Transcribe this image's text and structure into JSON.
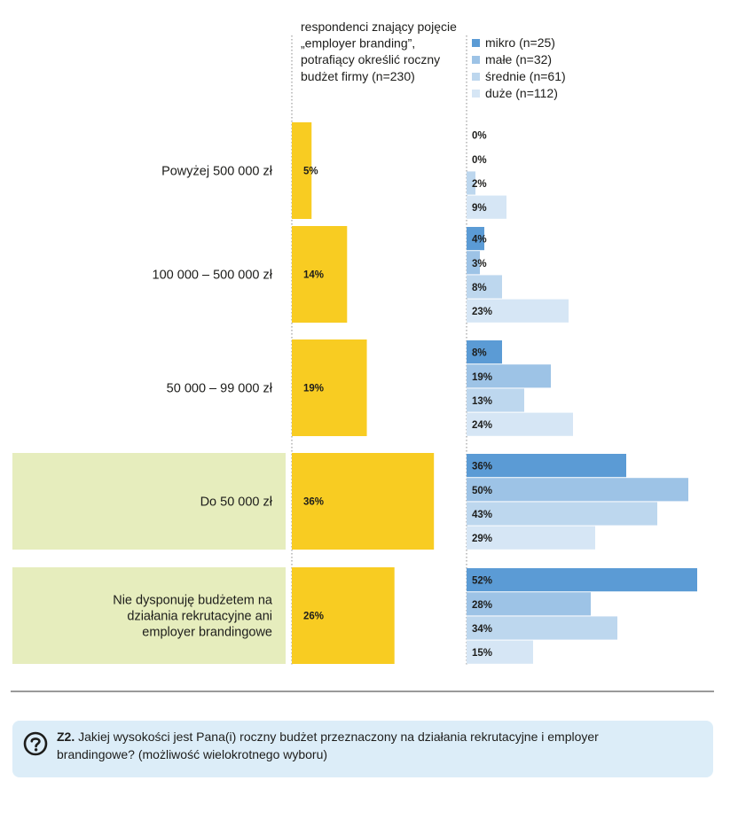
{
  "chart_data": [
    {
      "type": "bar",
      "orientation": "horizontal",
      "title": "respondenci znający pojęcie „employer branding”, potrafiący określić roczny budżet firmy (n=230)",
      "categories": [
        "Powyżej 500 000 zł",
        "100 000 – 500 000 zł",
        "50 000 – 99 000 zł",
        "Do 50 000 zł",
        "Nie dysponuję budżetem na działania rekrutacyjne ani employer brandingowe"
      ],
      "values": [
        5,
        14,
        19,
        36,
        26
      ],
      "labels": [
        "5%",
        "14%",
        "19%",
        "36%",
        "26%"
      ],
      "color": "#f8cc22",
      "highlighted_categories": [
        "Do 50 000 zł",
        "Nie dysponuję budżetem na działania rekrutacyjne ani employer brandingowe"
      ],
      "highlight_color": "#e6edbd"
    },
    {
      "type": "bar",
      "orientation": "horizontal",
      "categories": [
        "Powyżej 500 000 zł",
        "100 000 – 500 000 zł",
        "50 000 – 99 000 zł",
        "Do 50 000 zł",
        "Nie dysponuję budżetem na działania rekrutacyjne ani employer brandingowe"
      ],
      "series": [
        {
          "name": "mikro (n=25)",
          "color": "#5b9bd5",
          "values": [
            0,
            4,
            8,
            36,
            52
          ],
          "labels": [
            "0%",
            "4%",
            "8%",
            "36%",
            "52%"
          ]
        },
        {
          "name": "małe (n=32)",
          "color": "#9dc3e6",
          "values": [
            0,
            3,
            19,
            50,
            28
          ],
          "labels": [
            "0%",
            "3%",
            "19%",
            "50%",
            "28%"
          ]
        },
        {
          "name": "średnie (n=61)",
          "color": "#bdd7ee",
          "values": [
            2,
            8,
            13,
            43,
            34
          ],
          "labels": [
            "2%",
            "8%",
            "13%",
            "43%",
            "34%"
          ]
        },
        {
          "name": "duże (n=112)",
          "color": "#d6e6f5",
          "values": [
            9,
            23,
            24,
            29,
            15
          ],
          "labels": [
            "9%",
            "23%",
            "24%",
            "29%",
            "15%"
          ]
        }
      ]
    }
  ],
  "question": {
    "code": "Z2.",
    "text": "Jakiej wysokości jest Pana(i) roczny budżet przeznaczony na działania rekrutacyjne i employer brandingowe? (możliwość wielokrotnego wyboru)"
  }
}
